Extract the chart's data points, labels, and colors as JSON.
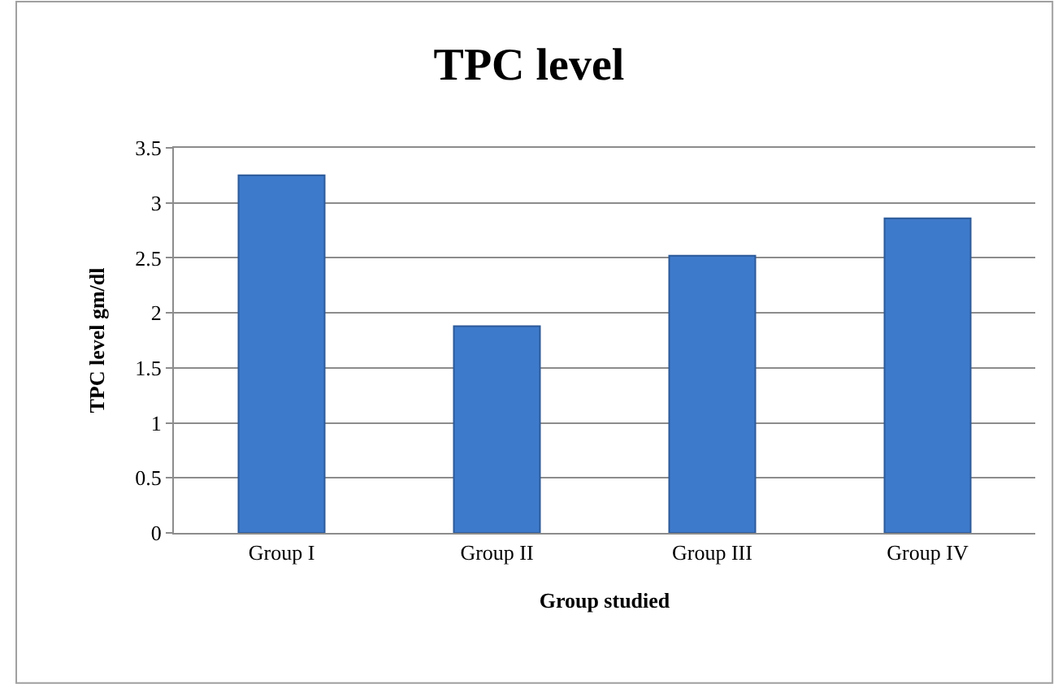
{
  "chart_data": {
    "type": "bar",
    "title": "TPC level",
    "xlabel": "Group studied",
    "ylabel": "TPC level gm/dl",
    "categories": [
      "Group I",
      "Group II",
      "Group III",
      "Group IV"
    ],
    "values": [
      3.25,
      1.88,
      2.52,
      2.86
    ],
    "color": "#3e7acb",
    "ylim": [
      0,
      3.5
    ],
    "yticks": [
      0,
      0.5,
      1,
      1.5,
      2,
      2.5,
      3,
      3.5
    ],
    "grid": "y"
  }
}
